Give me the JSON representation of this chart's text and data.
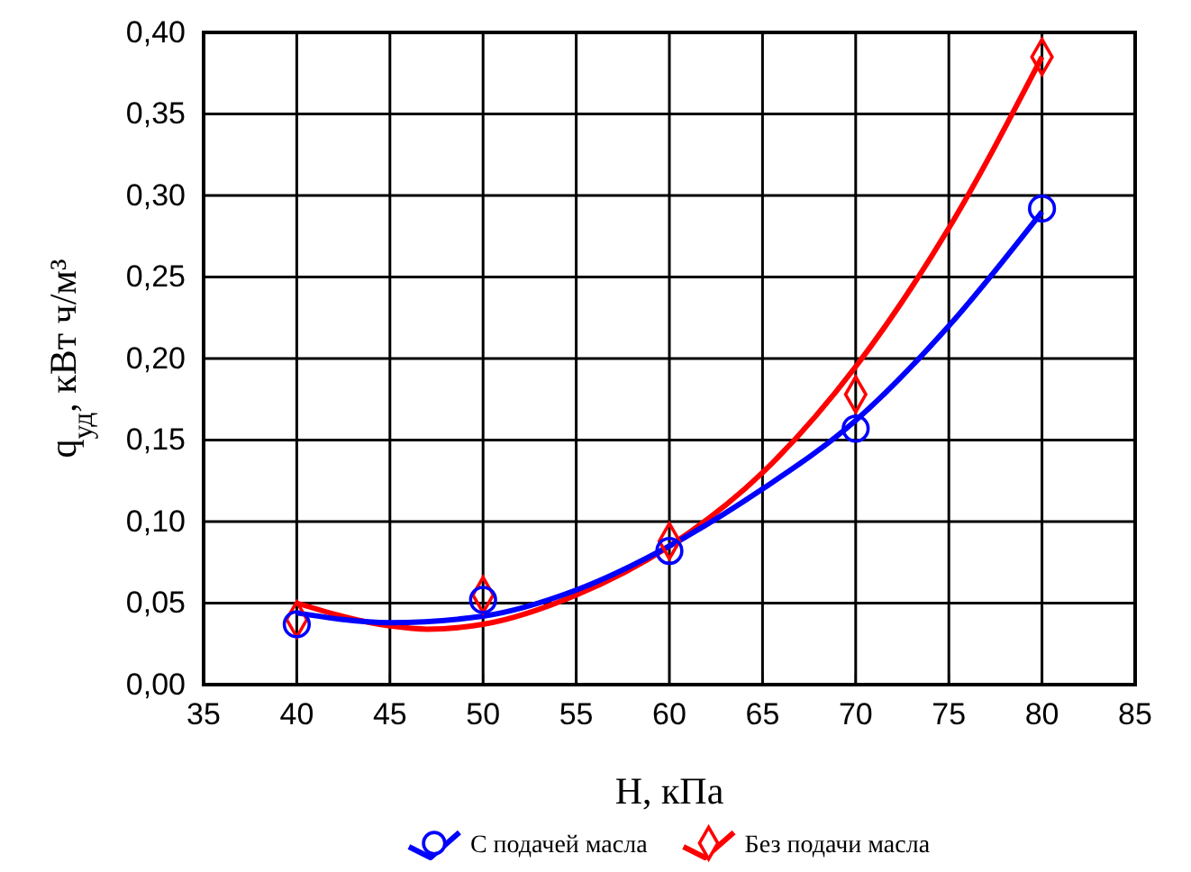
{
  "chart_data": {
    "type": "scatter",
    "xlabel": "H, кПа",
    "ylabel": "q$_{уд}$, кВт ч/м³",
    "x": [
      40,
      50,
      60,
      70,
      80
    ],
    "series": [
      {
        "name": "С подачей масла",
        "color": "#0000ff",
        "marker": "circle",
        "values": [
          0.037,
          0.052,
          0.082,
          0.157,
          0.292
        ]
      },
      {
        "name": "Без подачи масла",
        "color": "#ff0000",
        "marker": "diamond",
        "values": [
          0.04,
          0.055,
          0.088,
          0.178,
          0.385
        ]
      },
      {
        "type": "line",
        "color": "#0000ff",
        "x": [
          40,
          45,
          50,
          55,
          60,
          65,
          70,
          75,
          80
        ],
        "values": [
          0.044,
          0.038,
          0.042,
          0.058,
          0.085,
          0.12,
          0.162,
          0.22,
          0.29
        ]
      },
      {
        "type": "line",
        "color": "#ff0000",
        "x": [
          40,
          45,
          47,
          50,
          55,
          60,
          65,
          70,
          75,
          80
        ],
        "values": [
          0.05,
          0.036,
          0.034,
          0.037,
          0.055,
          0.085,
          0.13,
          0.195,
          0.28,
          0.385
        ]
      }
    ],
    "xlim": [
      35,
      85
    ],
    "xticks": [
      35,
      40,
      45,
      50,
      55,
      60,
      65,
      70,
      75,
      80,
      85
    ],
    "ylim": [
      0,
      0.4
    ],
    "yticks": [
      {
        "value": 0,
        "label": "0,00"
      },
      {
        "value": 0.05,
        "label": "0,05"
      },
      {
        "value": 0.1,
        "label": "0,10"
      },
      {
        "value": 0.15,
        "label": "0,15"
      },
      {
        "value": 0.2,
        "label": "0,20"
      },
      {
        "value": 0.25,
        "label": "0,25"
      },
      {
        "value": 0.3,
        "label": "0,30"
      },
      {
        "value": 0.35,
        "label": "0,35"
      },
      {
        "value": 0.4,
        "label": "0,40"
      }
    ],
    "grid": true,
    "legend": "bottom",
    "line_style": "solid"
  }
}
